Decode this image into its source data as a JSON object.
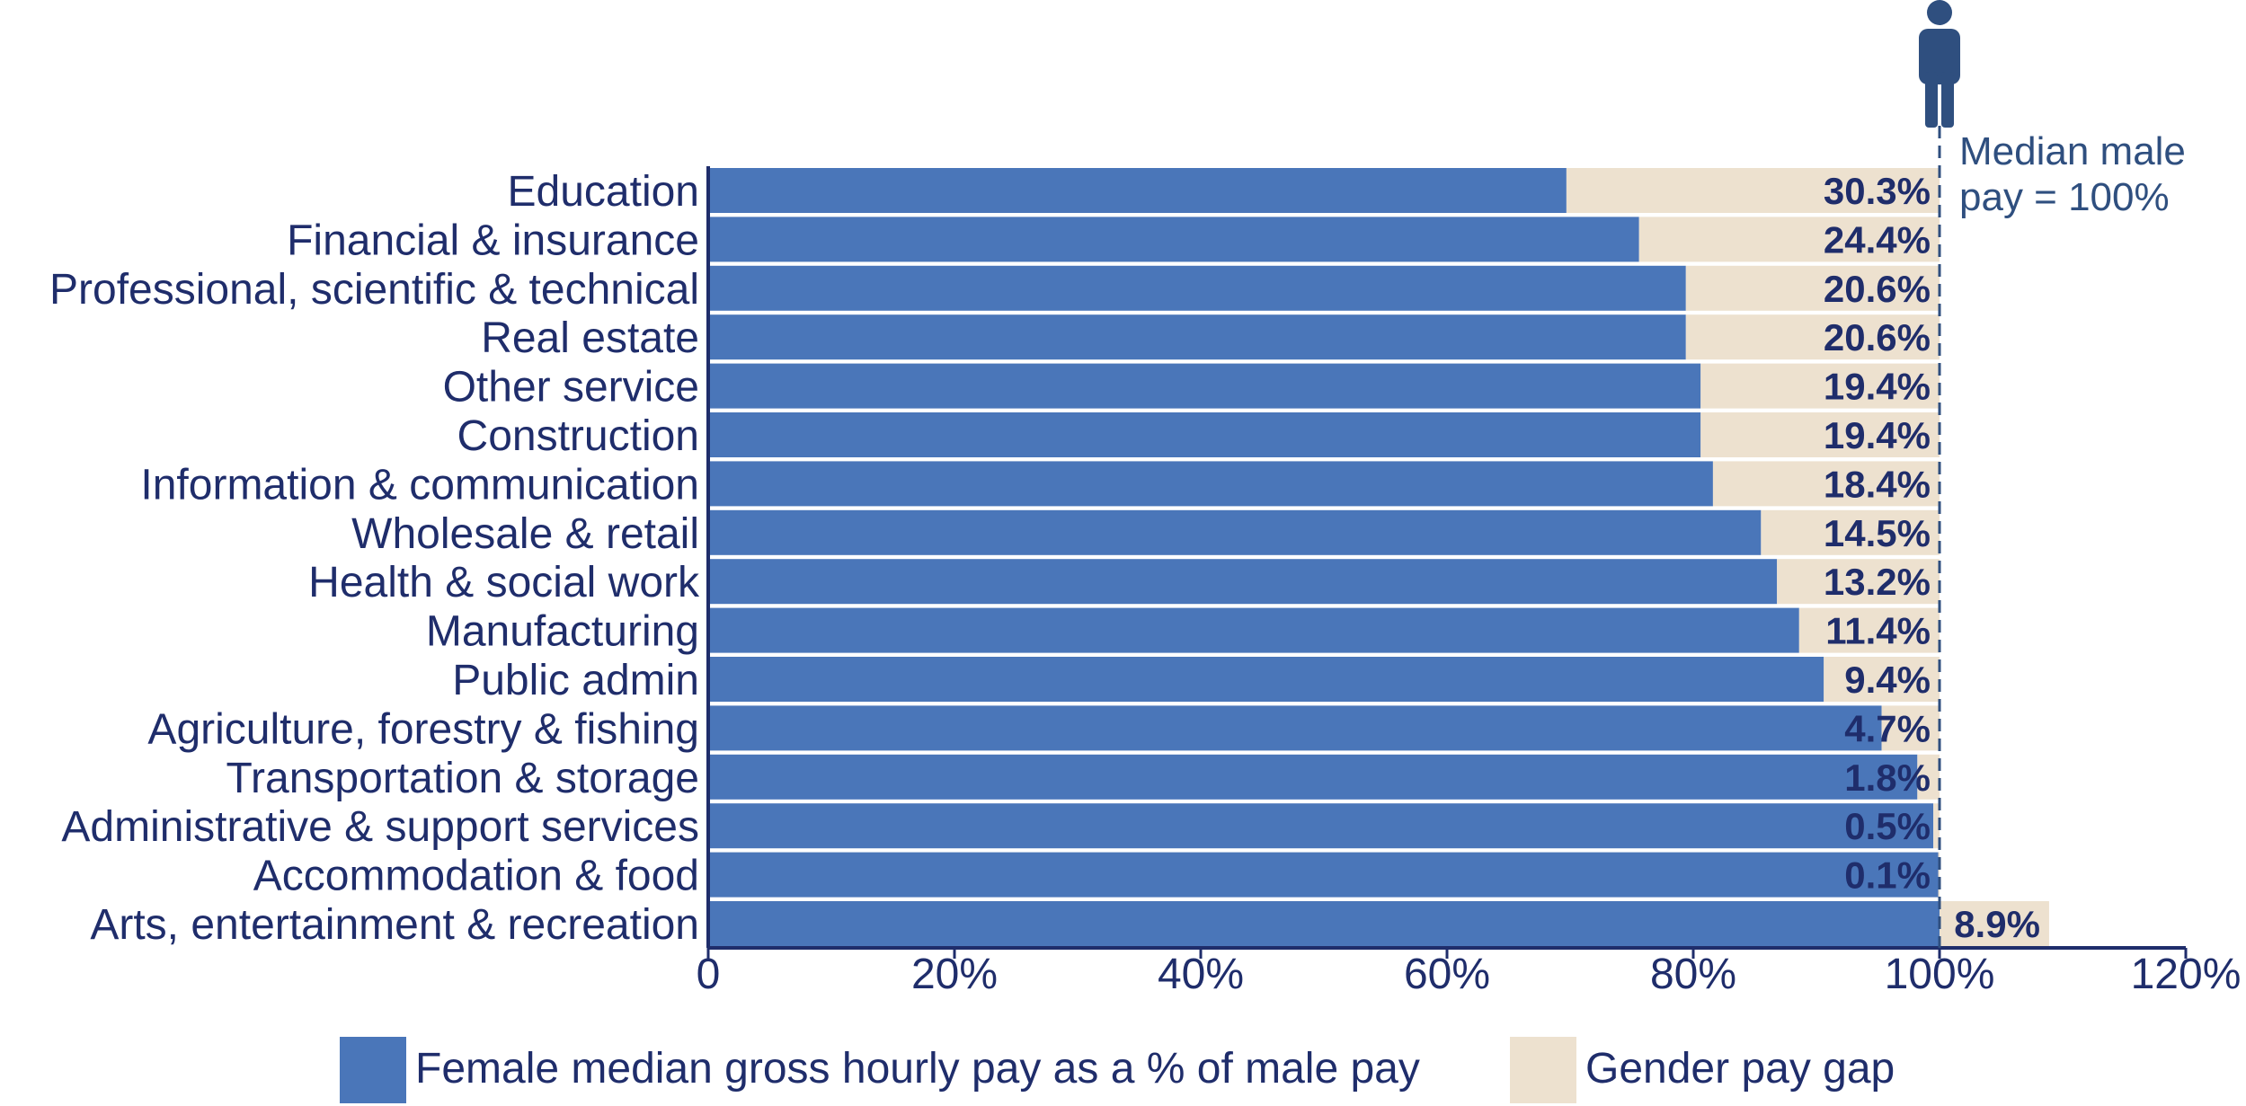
{
  "chart_data": {
    "type": "bar",
    "orientation": "horizontal",
    "stacked": true,
    "categories": [
      "Education",
      "Financial & insurance",
      "Professional, scientific & technical",
      "Real estate",
      "Other service",
      "Construction",
      "Information & communication",
      "Wholesale & retail",
      "Health & social work",
      "Manufacturing",
      "Public admin",
      "Agriculture, forestry & fishing",
      "Transportation & storage",
      "Administrative & support services",
      "Accommodation & food",
      "Arts, entertainment & recreation"
    ],
    "series": [
      {
        "name": "Female median gross hourly pay as a % of male pay",
        "color": "#4a76b9",
        "values": [
          69.7,
          75.6,
          79.4,
          79.4,
          80.6,
          80.6,
          81.6,
          85.5,
          86.8,
          88.6,
          90.6,
          95.3,
          98.2,
          99.5,
          99.9,
          100
        ]
      },
      {
        "name": "Gender pay gap",
        "color": "#ede1cf",
        "values": [
          30.3,
          24.4,
          20.6,
          20.6,
          19.4,
          19.4,
          18.4,
          14.5,
          13.2,
          11.4,
          9.4,
          4.7,
          1.8,
          0.5,
          0.1,
          8.9
        ]
      }
    ],
    "data_labels": [
      "30.3%",
      "24.4%",
      "20.6%",
      "20.6%",
      "19.4%",
      "19.4%",
      "18.4%",
      "14.5%",
      "13.2%",
      "11.4%",
      "9.4%",
      "4.7%",
      "1.8%",
      "0.5%",
      "0.1%",
      "8.9%"
    ],
    "xlim": [
      0,
      120
    ],
    "x_ticks": [
      "0",
      "20%",
      "40%",
      "60%",
      "80%",
      "100%",
      "120%"
    ],
    "reference_line": {
      "value": 100,
      "label_line1": "Median male",
      "label_line2": "pay = 100%",
      "icon": "male-person-icon"
    },
    "legend_position": "bottom",
    "grid": false
  }
}
